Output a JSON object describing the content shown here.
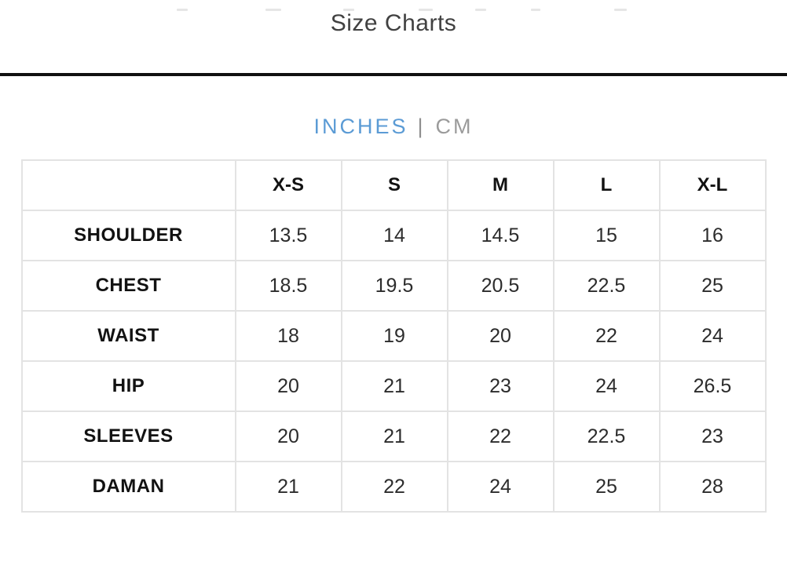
{
  "page": {
    "title": "Size Charts"
  },
  "unit_toggle": {
    "separator": "|",
    "options": [
      {
        "label": "INCHES",
        "active": true
      },
      {
        "label": "CM",
        "active": false
      }
    ],
    "active_color": "#5b9bd5",
    "inactive_color": "#9b9b9b",
    "separator_color": "#8f8f8f"
  },
  "size_table": {
    "columns": [
      "",
      "X-S",
      "S",
      "M",
      "L",
      "X-L"
    ],
    "rows": [
      {
        "label": "SHOULDER",
        "values": [
          "13.5",
          "14",
          "14.5",
          "15",
          "16"
        ]
      },
      {
        "label": "CHEST",
        "values": [
          "18.5",
          "19.5",
          "20.5",
          "22.5",
          "25"
        ]
      },
      {
        "label": "WAIST",
        "values": [
          "18",
          "19",
          "20",
          "22",
          "24"
        ]
      },
      {
        "label": "HIP",
        "values": [
          "20",
          "21",
          "23",
          "24",
          "26.5"
        ]
      },
      {
        "label": "SLEEVES",
        "values": [
          "20",
          "21",
          "22",
          "22.5",
          "23"
        ]
      },
      {
        "label": "DAMAN",
        "values": [
          "21",
          "22",
          "24",
          "25",
          "28"
        ]
      }
    ]
  }
}
